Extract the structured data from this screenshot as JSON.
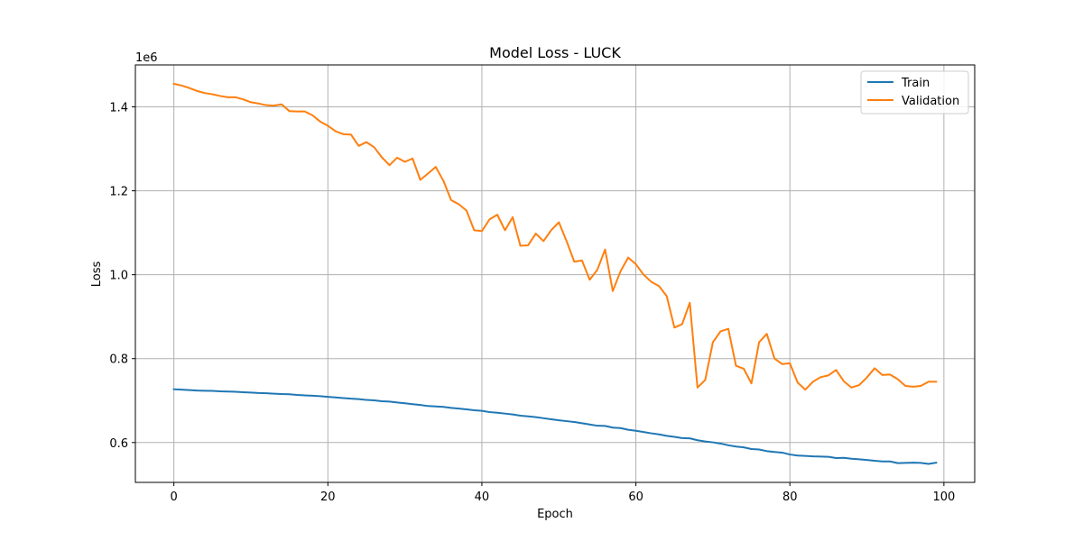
{
  "chart_data": {
    "type": "line",
    "title": "Model Loss - LUCK",
    "xlabel": "Epoch",
    "ylabel": "Loss",
    "y_scale_label": "1e6",
    "xlim": [
      -5,
      104
    ],
    "ylim": [
      505000,
      1500000
    ],
    "x_ticks": [
      0,
      20,
      40,
      60,
      80,
      100
    ],
    "y_ticks": [
      600000,
      800000,
      1000000,
      1200000,
      1400000
    ],
    "y_tick_labels": [
      "0.6",
      "0.8",
      "1.0",
      "1.2",
      "1.4"
    ],
    "grid": true,
    "legend_position": "top-right",
    "x": [
      0,
      1,
      2,
      3,
      4,
      5,
      6,
      7,
      8,
      9,
      10,
      11,
      12,
      13,
      14,
      15,
      16,
      17,
      18,
      19,
      20,
      21,
      22,
      23,
      24,
      25,
      26,
      27,
      28,
      29,
      30,
      31,
      32,
      33,
      34,
      35,
      36,
      37,
      38,
      39,
      40,
      41,
      42,
      43,
      44,
      45,
      46,
      47,
      48,
      49,
      50,
      51,
      52,
      53,
      54,
      55,
      56,
      57,
      58,
      59,
      60,
      61,
      62,
      63,
      64,
      65,
      66,
      67,
      68,
      69,
      70,
      71,
      72,
      73,
      74,
      75,
      76,
      77,
      78,
      79,
      80,
      81,
      82,
      83,
      84,
      85,
      86,
      87,
      88,
      89,
      90,
      91,
      92,
      93,
      94,
      95,
      96,
      97,
      98,
      99
    ],
    "series": [
      {
        "name": "Train",
        "color": "#1f77b4",
        "values": [
          727000,
          726000,
          725000,
          724000,
          723500,
          723000,
          722000,
          721500,
          721000,
          720000,
          719000,
          718000,
          717500,
          716500,
          715500,
          715000,
          713500,
          712500,
          711500,
          710500,
          709000,
          707500,
          706000,
          704500,
          703500,
          701500,
          700500,
          698500,
          697500,
          695500,
          693500,
          691500,
          689500,
          687000,
          686000,
          685000,
          682500,
          681000,
          679000,
          677000,
          675500,
          672500,
          671000,
          669000,
          667000,
          664000,
          662500,
          660500,
          658000,
          655500,
          653000,
          651000,
          649000,
          646000,
          643000,
          640000,
          639500,
          635500,
          634500,
          630500,
          628000,
          625000,
          622000,
          619500,
          616000,
          613500,
          610500,
          610000,
          605500,
          602500,
          600500,
          597500,
          593500,
          590500,
          588500,
          584500,
          583500,
          579500,
          577500,
          576000,
          571500,
          569000,
          568000,
          567000,
          566500,
          566000,
          563000,
          563500,
          561500,
          560000,
          558500,
          556500,
          555000,
          555000,
          551000,
          551500,
          552000,
          551500,
          549000,
          552000
        ]
      },
      {
        "name": "Validation",
        "color": "#ff7f0e",
        "values": [
          1455000,
          1451000,
          1445000,
          1438000,
          1433000,
          1430000,
          1426000,
          1423000,
          1423000,
          1418000,
          1411000,
          1408000,
          1404000,
          1403000,
          1406000,
          1390000,
          1389000,
          1389000,
          1380000,
          1365000,
          1355000,
          1342000,
          1335000,
          1334000,
          1307000,
          1316000,
          1304000,
          1280000,
          1261000,
          1279000,
          1269000,
          1277000,
          1226000,
          1241000,
          1257000,
          1224000,
          1178000,
          1168000,
          1153000,
          1106000,
          1104000,
          1132000,
          1143000,
          1106000,
          1137000,
          1069000,
          1070000,
          1098000,
          1080000,
          1106000,
          1125000,
          1080000,
          1031000,
          1034000,
          988000,
          1012000,
          1060000,
          961000,
          1008000,
          1041000,
          1025000,
          1000000,
          983000,
          973000,
          949000,
          874000,
          882000,
          933000,
          731000,
          749000,
          839000,
          865000,
          871000,
          783000,
          776000,
          741000,
          839000,
          859000,
          800000,
          787000,
          789000,
          743000,
          726000,
          745000,
          756000,
          760000,
          773000,
          746000,
          731000,
          737000,
          755000,
          777000,
          761000,
          762000,
          751000,
          735000,
          733000,
          735000,
          745000,
          745000
        ]
      }
    ]
  }
}
